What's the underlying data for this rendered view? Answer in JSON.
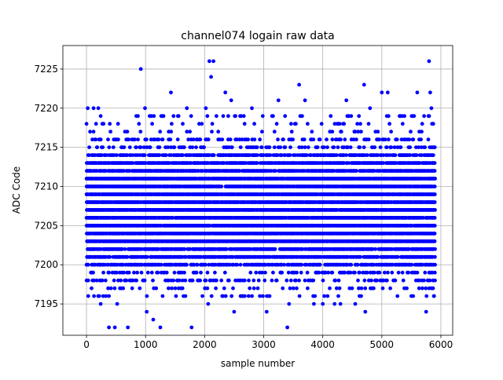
{
  "chart_data": {
    "type": "scatter",
    "title": "channel074 logain raw data",
    "xlabel": "sample number",
    "ylabel": "ADC Code",
    "xlim": [
      -400,
      6200
    ],
    "ylim": [
      7191,
      7228
    ],
    "x_ticks": [
      0,
      1000,
      2000,
      3000,
      4000,
      5000,
      6000
    ],
    "y_ticks": [
      7195,
      7200,
      7205,
      7210,
      7215,
      7220,
      7225
    ],
    "x_tick_labels": [
      "0",
      "1000",
      "2000",
      "3000",
      "4000",
      "5000",
      "6000"
    ],
    "y_tick_labels": [
      "7195",
      "7200",
      "7205",
      "7210",
      "7215",
      "7220",
      "7225"
    ],
    "grid": true,
    "series": [
      {
        "color": "#0000ff",
        "marker": "circle",
        "sample_range": [
          0,
          5900
        ],
        "dense_band": [
          7200,
          7214
        ],
        "points": [
          [
            0,
            7218
          ],
          [
            20,
            7220
          ],
          [
            120,
            7220
          ],
          [
            200,
            7220
          ],
          [
            240,
            7195
          ],
          [
            380,
            7192
          ],
          [
            480,
            7192
          ],
          [
            520,
            7195
          ],
          [
            700,
            7192
          ],
          [
            920,
            7225
          ],
          [
            990,
            7220
          ],
          [
            1020,
            7194
          ],
          [
            1130,
            7193
          ],
          [
            1250,
            7192
          ],
          [
            1300,
            7219
          ],
          [
            1430,
            7222
          ],
          [
            1700,
            7220
          ],
          [
            1780,
            7192
          ],
          [
            2020,
            7220
          ],
          [
            2060,
            7195
          ],
          [
            2080,
            7226
          ],
          [
            2110,
            7224
          ],
          [
            2150,
            7226
          ],
          [
            2200,
            7219
          ],
          [
            2350,
            7222
          ],
          [
            2400,
            7219
          ],
          [
            2450,
            7221
          ],
          [
            2500,
            7194
          ],
          [
            2600,
            7219
          ],
          [
            2800,
            7220
          ],
          [
            3050,
            7194
          ],
          [
            3100,
            7196
          ],
          [
            3250,
            7221
          ],
          [
            3400,
            7192
          ],
          [
            3430,
            7195
          ],
          [
            3600,
            7223
          ],
          [
            3650,
            7219
          ],
          [
            3700,
            7221
          ],
          [
            3850,
            7195
          ],
          [
            4000,
            7195
          ],
          [
            4200,
            7195
          ],
          [
            4300,
            7195
          ],
          [
            4400,
            7221
          ],
          [
            4550,
            7195
          ],
          [
            4650,
            7196
          ],
          [
            4700,
            7223
          ],
          [
            4720,
            7194
          ],
          [
            4800,
            7220
          ],
          [
            5000,
            7222
          ],
          [
            5100,
            7222
          ],
          [
            5300,
            7219
          ],
          [
            5500,
            7196
          ],
          [
            5600,
            7222
          ],
          [
            5750,
            7194
          ],
          [
            5800,
            7226
          ],
          [
            5820,
            7222
          ],
          [
            5840,
            7220
          ],
          [
            5850,
            7218
          ],
          [
            5880,
            7196
          ],
          [
            5900,
            7198
          ]
        ]
      }
    ]
  }
}
